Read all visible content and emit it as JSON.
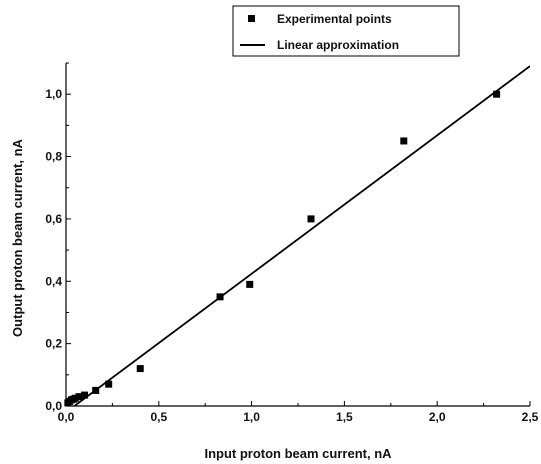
{
  "chart_data": {
    "type": "scatter",
    "title": "",
    "xlabel": "Input proton beam current, nA",
    "ylabel": "Output proton beam current, nA",
    "xlim": [
      0,
      2.5
    ],
    "ylim": [
      0,
      1.1
    ],
    "x_ticks": [
      0.0,
      0.5,
      1.0,
      1.5,
      2.0,
      2.5
    ],
    "x_tick_labels": [
      "0,0",
      "0,5",
      "1,0",
      "1,5",
      "2,0",
      "2,5"
    ],
    "y_ticks": [
      0.0,
      0.2,
      0.4,
      0.6,
      0.8,
      1.0
    ],
    "y_tick_labels": [
      "0,0",
      "0,2",
      "0,4",
      "0,6",
      "0,8",
      "1,0"
    ],
    "grid": false,
    "legend_position": "top-right",
    "series": [
      {
        "name": "Experimental points",
        "kind": "scatter",
        "color": "#000000",
        "marker": "square",
        "x": [
          0.01,
          0.02,
          0.03,
          0.04,
          0.05,
          0.07,
          0.1,
          0.16,
          0.23,
          0.4,
          0.83,
          0.99,
          1.32,
          1.82,
          2.32
        ],
        "y": [
          0.01,
          0.015,
          0.02,
          0.022,
          0.025,
          0.03,
          0.035,
          0.05,
          0.07,
          0.12,
          0.35,
          0.39,
          0.6,
          0.85,
          1.0
        ]
      },
      {
        "name": "Linear approximation",
        "kind": "line",
        "color": "#000000",
        "x": [
          0.0,
          2.5
        ],
        "y": [
          -0.02,
          1.09
        ]
      }
    ]
  }
}
